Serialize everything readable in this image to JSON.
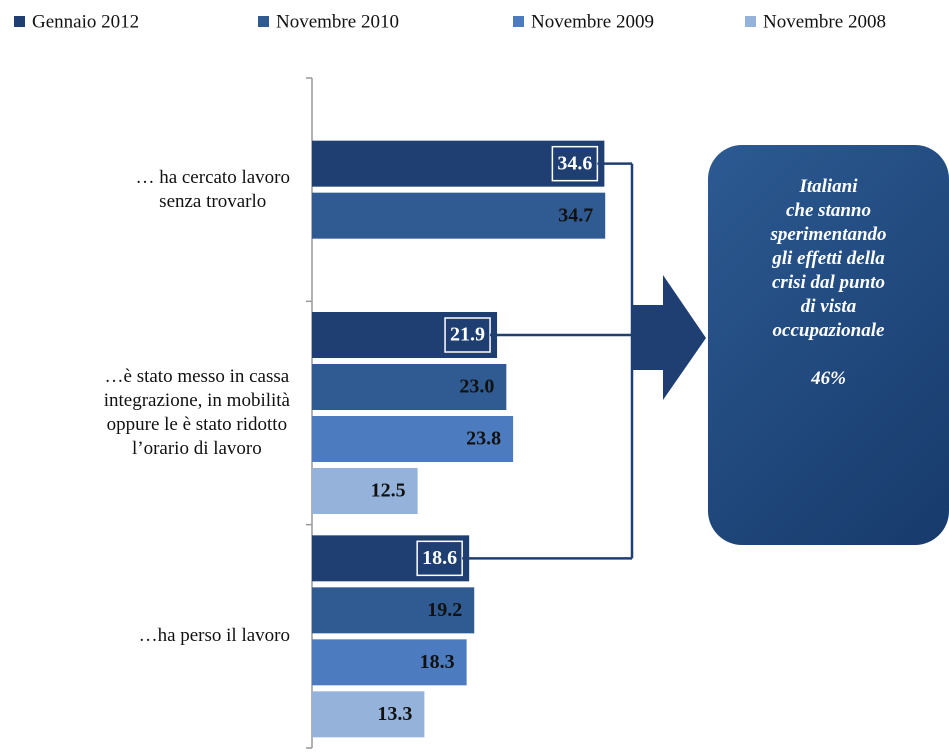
{
  "chart_data": {
    "type": "bar",
    "orientation": "horizontal",
    "categories": [
      "… ha cercato lavoro\nsenza trovarlo",
      "…è stato messo in cassa\nintegrazione, in mobilità\noppure le è stato ridotto\nl’orario di lavoro",
      "…ha perso il lavoro"
    ],
    "series": [
      {
        "name": "Gennaio 2012",
        "color": "#1f3f73",
        "values": [
          34.6,
          21.9,
          18.6
        ],
        "value_labels": [
          "34.6",
          "21.9",
          "18.6"
        ]
      },
      {
        "name": "Novembre 2010",
        "color": "#2f5b92",
        "values": [
          34.7,
          23.0,
          19.2
        ],
        "value_labels": [
          "34.7",
          "23.0",
          "19.2"
        ]
      },
      {
        "name": "Novembre 2009",
        "color": "#4c7cbf",
        "values": [
          null,
          23.8,
          18.3
        ],
        "value_labels": [
          null,
          "23.8",
          "18.3"
        ]
      },
      {
        "name": "Novembre 2008",
        "color": "#95b3da",
        "values": [
          null,
          12.5,
          13.3
        ],
        "value_labels": [
          null,
          "12.5",
          "13.3"
        ]
      }
    ],
    "xlim": [
      0,
      40
    ],
    "legend": "top",
    "annotation": {
      "lines": [
        "Italiani",
        "che stanno",
        "sperimentando",
        "gli effetti della",
        "crisi dal punto",
        "di vista",
        "occupazionale"
      ],
      "value": "46%"
    }
  }
}
